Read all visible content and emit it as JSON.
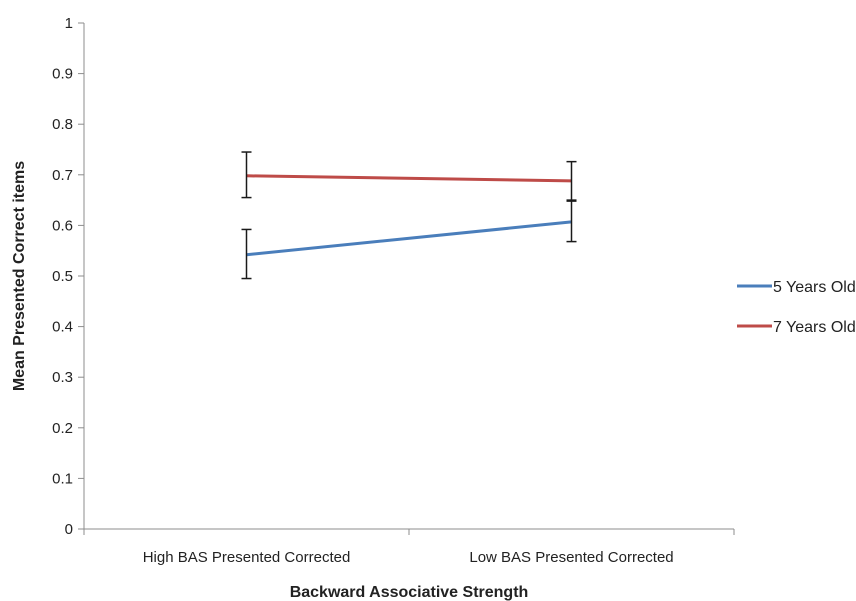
{
  "chart_data": {
    "type": "line",
    "xlabel": "Backward Associative Strength",
    "ylabel": "Mean Presented Correct items",
    "categories": [
      "High BAS Presented Corrected",
      "Low BAS Presented Corrected"
    ],
    "ylim": [
      0,
      1
    ],
    "yticks": [
      "0",
      "0.1",
      "0.2",
      "0.3",
      "0.4",
      "0.5",
      "0.6",
      "0.7",
      "0.8",
      "0.9",
      "1"
    ],
    "grid": false,
    "legend_position": "right",
    "series": [
      {
        "name": "5 Years Old",
        "color": "#4a7ebb",
        "values": [
          0.542,
          0.607
        ],
        "error_low": [
          0.495,
          0.568
        ],
        "error_high": [
          0.592,
          0.648
        ]
      },
      {
        "name": "7 Years Old",
        "color": "#be4b48",
        "values": [
          0.698,
          0.688
        ],
        "error_low": [
          0.655,
          0.65
        ],
        "error_high": [
          0.745,
          0.726
        ]
      }
    ]
  }
}
